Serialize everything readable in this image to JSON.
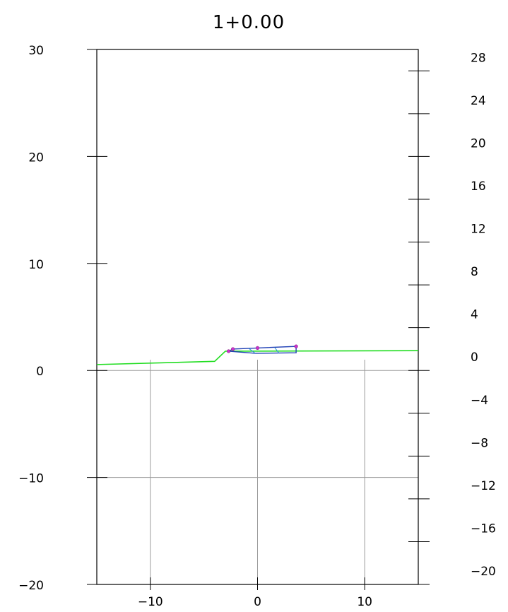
{
  "title": "1+0.00",
  "chart_data": {
    "type": "cross-section",
    "title": "1+0.00",
    "xlim": [
      -15,
      15
    ],
    "ylim": [
      -20,
      30
    ],
    "x_ticks": [
      -10,
      0,
      10
    ],
    "left_y_ticks": [
      30,
      20,
      10,
      0,
      -10,
      -20
    ],
    "right_y_ticks": [
      28,
      24,
      20,
      16,
      12,
      8,
      4,
      0,
      -4,
      -8,
      -12,
      -16,
      -20
    ],
    "grid": "on at offsets -10, 0, 10 and elevations 0, -10 below ground",
    "series": [
      {
        "kind": "existing-ground",
        "color": "#22dd22",
        "points": [
          [
            -15,
            0.55
          ],
          [
            -4,
            0.85
          ],
          [
            -3,
            1.8
          ],
          [
            15,
            1.85
          ]
        ]
      },
      {
        "kind": "design-section",
        "color": "#1f3fb5",
        "outline": [
          [
            -2.7,
            1.8
          ],
          [
            -2.3,
            2.0
          ],
          [
            0,
            2.1
          ],
          [
            3.6,
            2.25
          ],
          [
            3.6,
            1.65
          ],
          [
            -0.2,
            1.6
          ],
          [
            -2.7,
            1.8
          ]
        ],
        "inner_lines": [
          [
            [
              -0.8,
              2.05
            ],
            [
              -0.2,
              1.6
            ]
          ],
          [
            [
              1.6,
              2.15
            ],
            [
              2.0,
              1.62
            ]
          ]
        ]
      }
    ],
    "control_points": {
      "color": "#cc33cc",
      "points": [
        [
          -2.7,
          1.8
        ],
        [
          -2.3,
          2.0
        ],
        [
          0,
          2.1
        ],
        [
          3.6,
          2.25
        ]
      ]
    }
  }
}
